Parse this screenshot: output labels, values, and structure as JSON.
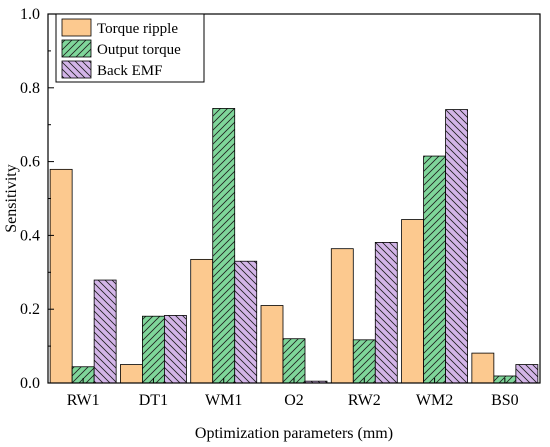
{
  "chart_data": {
    "type": "bar",
    "xlabel": "Optimization parameters (mm)",
    "ylabel": "Sensitivity",
    "ylim": [
      0,
      1.0
    ],
    "yticks": [
      "0.0",
      "0.2",
      "0.4",
      "0.6",
      "0.8",
      "1.0"
    ],
    "grid": false,
    "legend_position": "top-left",
    "categories": [
      "RW1",
      "DT1",
      "WM1",
      "O2",
      "RW2",
      "WM2",
      "BS0"
    ],
    "series": [
      {
        "name": "Torque ripple",
        "color": "#fcc98f",
        "pattern": "solid",
        "values": [
          0.579,
          0.05,
          0.335,
          0.21,
          0.364,
          0.443,
          0.081
        ]
      },
      {
        "name": "Output torque",
        "color": "#7fd69a",
        "pattern": "hatch",
        "values": [
          0.044,
          0.181,
          0.744,
          0.12,
          0.117,
          0.615,
          0.019
        ]
      },
      {
        "name": "Back EMF",
        "color": "#d3b5e8",
        "pattern": "hatch",
        "values": [
          0.279,
          0.183,
          0.33,
          0.005,
          0.381,
          0.741,
          0.05
        ]
      }
    ]
  }
}
